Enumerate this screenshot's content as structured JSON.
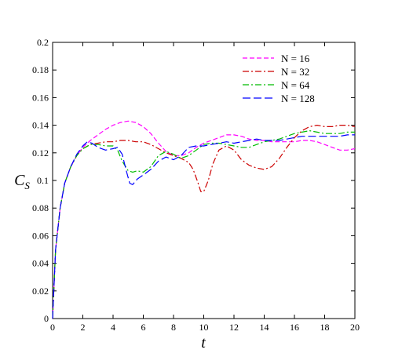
{
  "chart_data": {
    "type": "line",
    "xlabel": "t",
    "ylabel": "C",
    "ylabel_subscript": "S",
    "xlim": [
      0,
      20
    ],
    "ylim": [
      0,
      0.2
    ],
    "xticks": [
      0,
      2,
      4,
      6,
      8,
      10,
      12,
      14,
      16,
      18,
      20
    ],
    "yticks": [
      0,
      0.02,
      0.04,
      0.06,
      0.08,
      0.1,
      0.12,
      0.14,
      0.16,
      0.18,
      0.2
    ],
    "xtick_labels": [
      "0",
      "2",
      "4",
      "6",
      "8",
      "10",
      "12",
      "14",
      "16",
      "18",
      "20"
    ],
    "ytick_labels": [
      "0",
      "0.02",
      "0.04",
      "0.06",
      "0.08",
      "0.1",
      "0.12",
      "0.14",
      "0.16",
      "0.18",
      "0.2"
    ],
    "grid": false,
    "legend_position": "top-right",
    "series": [
      {
        "name": "N = 16",
        "color": "#ff00ff",
        "dash": "6,3",
        "x": [
          0,
          0.2,
          0.5,
          0.8,
          1.2,
          1.6,
          2,
          2.5,
          3,
          3.5,
          4,
          4.5,
          5,
          5.5,
          6,
          6.5,
          7,
          7.5,
          8,
          8.5,
          9,
          9.5,
          10,
          10.5,
          11,
          11.5,
          12,
          12.5,
          13,
          13.5,
          14,
          14.5,
          15,
          15.5,
          16,
          16.5,
          17,
          17.5,
          18,
          18.5,
          19,
          19.5,
          20
        ],
        "y": [
          0.0,
          0.05,
          0.08,
          0.098,
          0.11,
          0.118,
          0.124,
          0.129,
          0.133,
          0.137,
          0.14,
          0.142,
          0.143,
          0.142,
          0.139,
          0.134,
          0.127,
          0.121,
          0.118,
          0.118,
          0.12,
          0.124,
          0.127,
          0.129,
          0.131,
          0.133,
          0.133,
          0.132,
          0.13,
          0.129,
          0.129,
          0.128,
          0.128,
          0.128,
          0.128,
          0.129,
          0.129,
          0.128,
          0.126,
          0.124,
          0.122,
          0.122,
          0.123
        ]
      },
      {
        "name": "N = 32",
        "color": "#cc0000",
        "dash": "8,3,2,3",
        "x": [
          0,
          0.2,
          0.5,
          0.8,
          1.2,
          1.6,
          2,
          2.5,
          3,
          3.5,
          4,
          4.5,
          5,
          5.5,
          6,
          6.5,
          7,
          7.5,
          8,
          8.5,
          9,
          9.3,
          9.6,
          9.8,
          10,
          10.3,
          10.6,
          11,
          11.5,
          12,
          12.5,
          13,
          13.5,
          14,
          14.5,
          15,
          15.5,
          16,
          16.5,
          17,
          17.5,
          18,
          18.5,
          19,
          19.5,
          20
        ],
        "y": [
          0.0,
          0.05,
          0.08,
          0.098,
          0.11,
          0.118,
          0.123,
          0.126,
          0.127,
          0.128,
          0.128,
          0.129,
          0.129,
          0.128,
          0.128,
          0.126,
          0.123,
          0.12,
          0.118,
          0.116,
          0.113,
          0.108,
          0.099,
          0.092,
          0.092,
          0.1,
          0.112,
          0.122,
          0.125,
          0.122,
          0.115,
          0.111,
          0.109,
          0.108,
          0.11,
          0.116,
          0.124,
          0.131,
          0.136,
          0.139,
          0.14,
          0.139,
          0.139,
          0.14,
          0.14,
          0.139
        ]
      },
      {
        "name": "N = 64",
        "color": "#00bb00",
        "dash": "8,3,2,3",
        "x": [
          0,
          0.2,
          0.5,
          0.8,
          1.2,
          1.6,
          2,
          2.5,
          3,
          3.5,
          4,
          4.3,
          4.6,
          5,
          5.3,
          5.6,
          6,
          6.5,
          7,
          7.5,
          8,
          8.5,
          9,
          9.5,
          10,
          10.5,
          11,
          11.5,
          12,
          12.5,
          13,
          13.5,
          14,
          14.5,
          15,
          15.5,
          16,
          16.5,
          17,
          17.5,
          18,
          18.5,
          19,
          19.5,
          20
        ],
        "y": [
          0.0,
          0.05,
          0.08,
          0.098,
          0.11,
          0.118,
          0.123,
          0.126,
          0.126,
          0.125,
          0.125,
          0.122,
          0.114,
          0.107,
          0.106,
          0.107,
          0.106,
          0.11,
          0.118,
          0.121,
          0.119,
          0.116,
          0.118,
          0.122,
          0.126,
          0.127,
          0.127,
          0.126,
          0.125,
          0.124,
          0.124,
          0.126,
          0.128,
          0.129,
          0.13,
          0.132,
          0.134,
          0.135,
          0.136,
          0.135,
          0.134,
          0.134,
          0.134,
          0.135,
          0.135
        ]
      },
      {
        "name": "N = 128",
        "color": "#0000ff",
        "dash": "10,4",
        "x": [
          0,
          0.2,
          0.5,
          0.8,
          1.2,
          1.6,
          2,
          2.3,
          2.6,
          3,
          3.5,
          4,
          4.3,
          4.6,
          4.9,
          5.1,
          5.3,
          5.6,
          6,
          6.5,
          7,
          7.5,
          8,
          8.5,
          9,
          9.5,
          10,
          10.5,
          11,
          11.5,
          12,
          12.5,
          13,
          13.5,
          14,
          14.5,
          15,
          15.5,
          16,
          16.5,
          17,
          17.5,
          18,
          18.5,
          19,
          19.5,
          20
        ],
        "y": [
          0.0,
          0.05,
          0.08,
          0.098,
          0.11,
          0.119,
          0.125,
          0.128,
          0.127,
          0.124,
          0.122,
          0.123,
          0.124,
          0.119,
          0.106,
          0.098,
          0.097,
          0.101,
          0.104,
          0.108,
          0.114,
          0.117,
          0.115,
          0.118,
          0.124,
          0.125,
          0.125,
          0.126,
          0.127,
          0.128,
          0.127,
          0.128,
          0.129,
          0.13,
          0.129,
          0.129,
          0.129,
          0.13,
          0.131,
          0.132,
          0.132,
          0.132,
          0.132,
          0.132,
          0.132,
          0.133,
          0.133
        ]
      }
    ]
  }
}
